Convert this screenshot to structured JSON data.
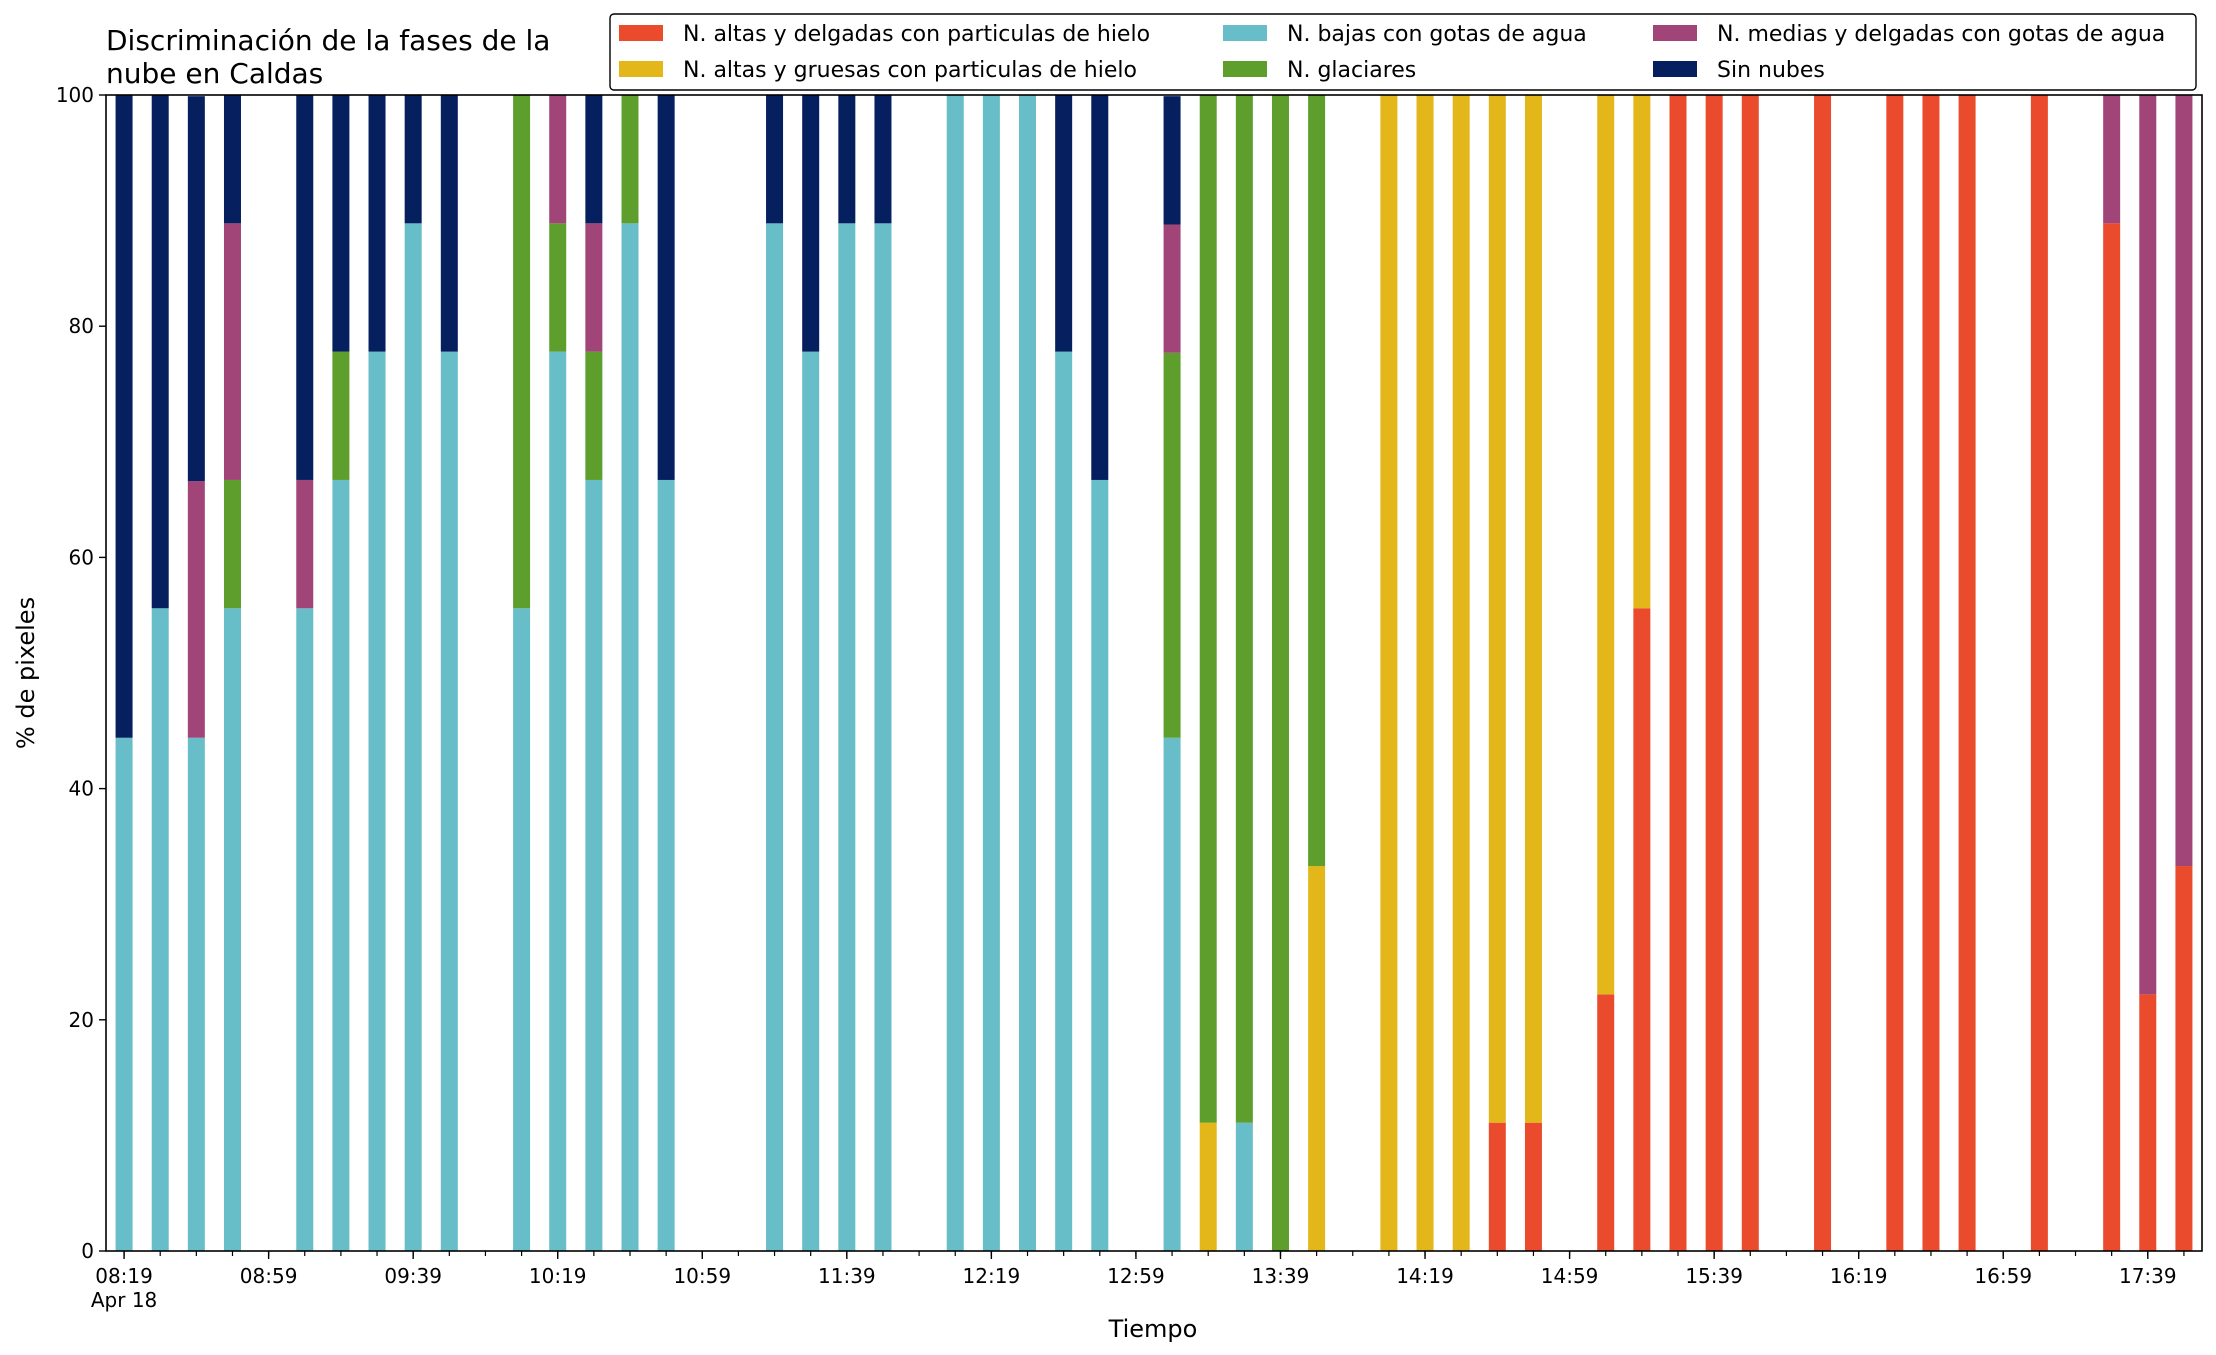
{
  "chart_data": {
    "type": "bar",
    "stacked": true,
    "title_lines": [
      "Discriminación de la fases de la",
      "nube en Caldas"
    ],
    "xlabel": "Tiempo",
    "ylabel": "% de pixeles",
    "ylim": [
      0,
      100
    ],
    "yticks": [
      0,
      20,
      40,
      60,
      80,
      100
    ],
    "grid": false,
    "legend_position": "top-right",
    "x_start_minutes": 499,
    "x_step_minutes": 10,
    "x_range_minutes": [
      494,
      1074
    ],
    "xtick_labels": [
      {
        "minute": 499,
        "label": "08:19",
        "sublabel": "Apr 18"
      },
      {
        "minute": 539,
        "label": "08:59"
      },
      {
        "minute": 579,
        "label": "09:39"
      },
      {
        "minute": 619,
        "label": "10:19"
      },
      {
        "minute": 659,
        "label": "10:59"
      },
      {
        "minute": 699,
        "label": "11:39"
      },
      {
        "minute": 739,
        "label": "12:19"
      },
      {
        "minute": 779,
        "label": "12:59"
      },
      {
        "minute": 819,
        "label": "13:39"
      },
      {
        "minute": 859,
        "label": "14:19"
      },
      {
        "minute": 899,
        "label": "14:59"
      },
      {
        "minute": 939,
        "label": "15:39"
      },
      {
        "minute": 979,
        "label": "16:19"
      },
      {
        "minute": 1019,
        "label": "16:59"
      },
      {
        "minute": 1059,
        "label": "17:39"
      }
    ],
    "series": [
      {
        "name": "N. altas y delgadas con particulas de hielo",
        "color": "#ea4b2c"
      },
      {
        "name": "N. altas y gruesas con particulas de hielo",
        "color": "#e3b719"
      },
      {
        "name": "N. bajas con gotas de agua",
        "color": "#67bdc8"
      },
      {
        "name": "N. glaciares",
        "color": "#5d9e2c"
      },
      {
        "name": "N. medias y delgadas con gotas de agua",
        "color": "#a14477"
      },
      {
        "name": "Sin nubes",
        "color": "#051f5f"
      }
    ],
    "stack_order": [
      "N. altas y delgadas con particulas de hielo",
      "N. altas y gruesas con particulas de hielo",
      "N. bajas con gotas de agua",
      "N. glaciares",
      "N. medias y delgadas con gotas de agua",
      "Sin nubes"
    ],
    "bars": [
      {
        "slot": 0,
        "values": [
          0,
          0,
          44.4,
          0,
          0,
          55.6
        ]
      },
      {
        "slot": 1,
        "values": [
          0,
          0,
          55.6,
          0,
          0,
          44.4
        ]
      },
      {
        "slot": 2,
        "values": [
          0,
          0,
          44.4,
          0,
          22.2,
          33.3
        ]
      },
      {
        "slot": 3,
        "values": [
          0,
          0,
          55.6,
          11.1,
          22.2,
          11.1
        ]
      },
      {
        "slot": 5,
        "values": [
          0,
          0,
          55.6,
          0,
          11.1,
          33.3
        ]
      },
      {
        "slot": 6,
        "values": [
          0,
          0,
          66.7,
          11.1,
          0,
          22.2
        ]
      },
      {
        "slot": 7,
        "values": [
          0,
          0,
          77.8,
          0,
          0,
          22.2
        ]
      },
      {
        "slot": 8,
        "values": [
          0,
          0,
          88.9,
          0,
          0,
          11.1
        ]
      },
      {
        "slot": 9,
        "values": [
          0,
          0,
          77.8,
          0,
          0,
          22.2
        ]
      },
      {
        "slot": 11,
        "values": [
          0,
          0,
          55.6,
          44.4,
          0,
          0
        ]
      },
      {
        "slot": 12,
        "values": [
          0,
          0,
          77.8,
          11.1,
          11.1,
          0
        ]
      },
      {
        "slot": 13,
        "values": [
          0,
          0,
          66.7,
          11.1,
          11.1,
          11.1
        ]
      },
      {
        "slot": 14,
        "values": [
          0,
          0,
          88.9,
          11.1,
          0,
          0
        ]
      },
      {
        "slot": 15,
        "values": [
          0,
          0,
          66.7,
          0,
          0,
          33.3
        ]
      },
      {
        "slot": 18,
        "values": [
          0,
          0,
          88.9,
          0,
          0,
          11.1
        ]
      },
      {
        "slot": 19,
        "values": [
          0,
          0,
          77.8,
          0,
          0,
          22.2
        ]
      },
      {
        "slot": 20,
        "values": [
          0,
          0,
          88.9,
          0,
          0,
          11.1
        ]
      },
      {
        "slot": 21,
        "values": [
          0,
          0,
          88.9,
          0,
          0,
          11.1
        ]
      },
      {
        "slot": 23,
        "values": [
          0,
          0,
          100,
          0,
          0,
          0
        ]
      },
      {
        "slot": 24,
        "values": [
          0,
          0,
          100,
          0,
          0,
          0
        ]
      },
      {
        "slot": 25,
        "values": [
          0,
          0,
          100,
          0,
          0,
          0
        ]
      },
      {
        "slot": 26,
        "values": [
          0,
          0,
          77.8,
          0,
          0,
          22.2
        ]
      },
      {
        "slot": 27,
        "values": [
          0,
          0,
          66.7,
          0,
          0,
          33.3
        ]
      },
      {
        "slot": 29,
        "values": [
          0,
          0,
          44.4,
          33.3,
          11.1,
          11.1
        ]
      },
      {
        "slot": 30,
        "values": [
          0,
          11.1,
          0,
          88.9,
          0,
          0
        ]
      },
      {
        "slot": 31,
        "values": [
          0,
          0,
          11.1,
          88.9,
          0,
          0
        ]
      },
      {
        "slot": 32,
        "values": [
          0,
          0,
          0,
          100,
          0,
          0
        ]
      },
      {
        "slot": 33,
        "values": [
          0,
          33.3,
          0,
          66.7,
          0,
          0
        ]
      },
      {
        "slot": 35,
        "values": [
          0,
          100,
          0,
          0,
          0,
          0
        ]
      },
      {
        "slot": 36,
        "values": [
          0,
          100,
          0,
          0,
          0,
          0
        ]
      },
      {
        "slot": 37,
        "values": [
          0,
          100,
          0,
          0,
          0,
          0
        ]
      },
      {
        "slot": 38,
        "values": [
          11.1,
          88.9,
          0,
          0,
          0,
          0
        ]
      },
      {
        "slot": 39,
        "values": [
          11.1,
          88.9,
          0,
          0,
          0,
          0
        ]
      },
      {
        "slot": 41,
        "values": [
          22.2,
          77.8,
          0,
          0,
          0,
          0
        ]
      },
      {
        "slot": 42,
        "values": [
          55.6,
          44.4,
          0,
          0,
          0,
          0
        ]
      },
      {
        "slot": 43,
        "values": [
          100,
          0,
          0,
          0,
          0,
          0
        ]
      },
      {
        "slot": 44,
        "values": [
          100,
          0,
          0,
          0,
          0,
          0
        ]
      },
      {
        "slot": 45,
        "values": [
          100,
          0,
          0,
          0,
          0,
          0
        ]
      },
      {
        "slot": 47,
        "values": [
          100,
          0,
          0,
          0,
          0,
          0
        ]
      },
      {
        "slot": 49,
        "values": [
          100,
          0,
          0,
          0,
          0,
          0
        ]
      },
      {
        "slot": 50,
        "values": [
          100,
          0,
          0,
          0,
          0,
          0
        ]
      },
      {
        "slot": 51,
        "values": [
          100,
          0,
          0,
          0,
          0,
          0
        ]
      },
      {
        "slot": 53,
        "values": [
          100,
          0,
          0,
          0,
          0,
          0
        ]
      },
      {
        "slot": 55,
        "values": [
          88.9,
          0,
          0,
          0,
          11.1,
          0
        ]
      },
      {
        "slot": 56,
        "values": [
          22.2,
          0,
          0,
          0,
          77.8,
          0
        ]
      },
      {
        "slot": 57,
        "values": [
          33.3,
          0,
          0,
          0,
          66.7,
          0
        ]
      }
    ]
  }
}
